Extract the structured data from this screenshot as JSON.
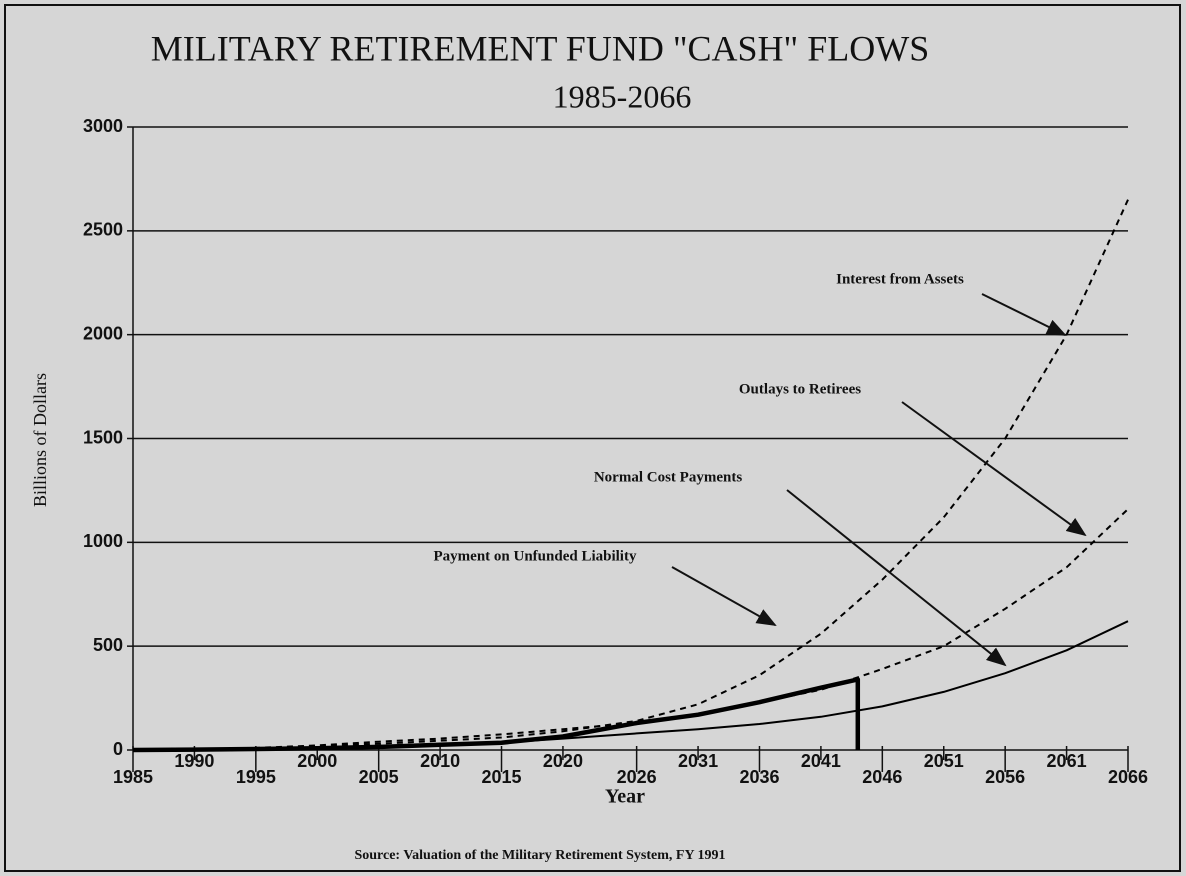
{
  "chart_data": {
    "type": "line",
    "title": "MILITARY RETIREMENT FUND \"CASH\" FLOWS",
    "subtitle": "1985-2066",
    "xlabel": "Year",
    "ylabel": "Billions of Dollars",
    "source": "Source:  Valuation of the Military Retirement System, FY 1991",
    "x": [
      1985,
      1990,
      1995,
      2000,
      2005,
      2010,
      2015,
      2020,
      2026,
      2031,
      2036,
      2041,
      2046,
      2051,
      2056,
      2061,
      2066
    ],
    "xlim": [
      1985,
      2066
    ],
    "xticks": [
      1985,
      1990,
      1995,
      2000,
      2005,
      2010,
      2015,
      2020,
      2026,
      2031,
      2036,
      2041,
      2046,
      2051,
      2056,
      2061,
      2066
    ],
    "ylim": [
      0,
      3000
    ],
    "yticks": [
      0,
      500,
      1000,
      1500,
      2000,
      2500,
      3000
    ],
    "grid": true,
    "series": [
      {
        "name": "Interest from Assets",
        "color": "#000000",
        "linestyle": "dashed",
        "values": [
          0,
          3,
          8,
          20,
          30,
          45,
          60,
          90,
          140,
          220,
          360,
          560,
          820,
          1120,
          1500,
          2000,
          2650
        ]
      },
      {
        "name": "Outlays to Retirees",
        "color": "#000000",
        "linestyle": "dashed",
        "values": [
          0,
          4,
          10,
          22,
          40,
          55,
          75,
          100,
          130,
          170,
          230,
          290,
          390,
          500,
          680,
          880,
          1160
        ]
      },
      {
        "name": "Normal Cost Payments",
        "color": "#000000",
        "linestyle": "solid",
        "values": [
          0,
          2,
          5,
          10,
          15,
          25,
          35,
          55,
          80,
          100,
          125,
          160,
          210,
          280,
          370,
          480,
          620
        ]
      },
      {
        "name": "Payment on Unfunded Liability",
        "color": "#000000",
        "linestyle": "bold",
        "x": [
          1985,
          1990,
          1995,
          2000,
          2005,
          2010,
          2015,
          2020,
          2026,
          2031,
          2036,
          2041,
          2044,
          2044
        ],
        "values": [
          0,
          2,
          5,
          8,
          15,
          25,
          35,
          65,
          130,
          170,
          230,
          300,
          340,
          0
        ]
      }
    ]
  }
}
